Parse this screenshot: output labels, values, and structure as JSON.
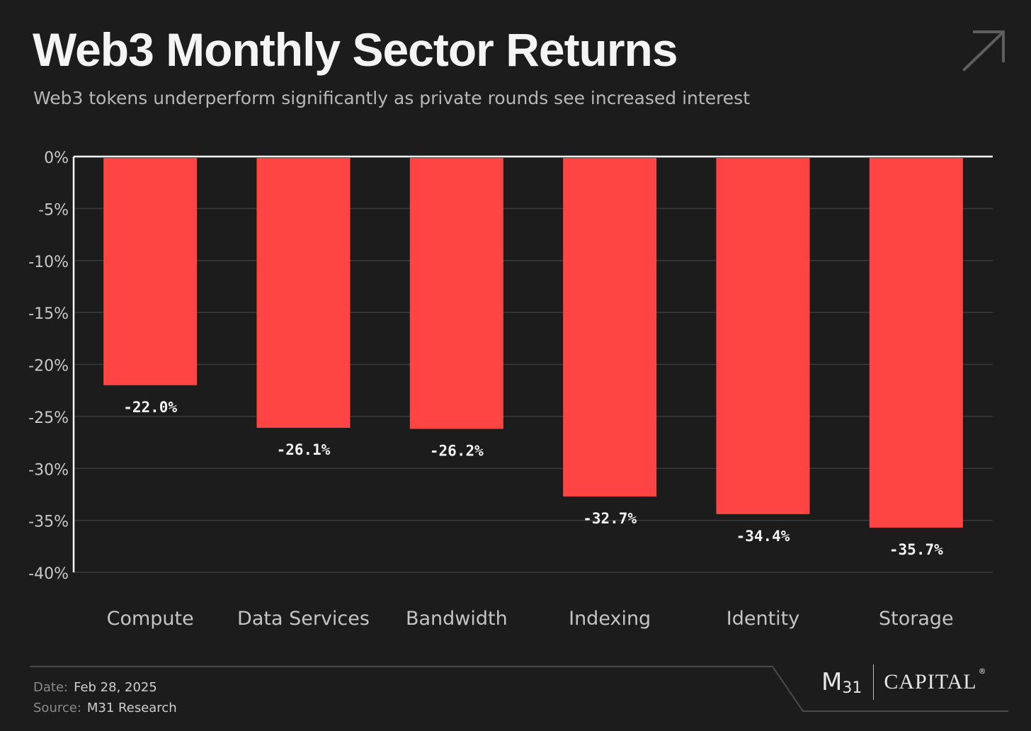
{
  "header": {
    "title": "Web3 Monthly Sector Returns",
    "subtitle": "Web3 tokens underperform significantly as private rounds see increased interest",
    "corner_icon": "arrow-up-right-icon"
  },
  "chart_data": {
    "type": "bar",
    "title": "Web3 Monthly Sector Returns",
    "subtitle": "Web3 tokens underperform significantly as private rounds see increased interest",
    "categories": [
      "Compute",
      "Data Services",
      "Bandwidth",
      "Indexing",
      "Identity",
      "Storage"
    ],
    "values": [
      -22.0,
      -26.1,
      -26.2,
      -32.7,
      -34.4,
      -35.7
    ],
    "data_labels": [
      "-22.0%",
      "-26.1%",
      "-26.2%",
      "-32.7%",
      "-34.4%",
      "-35.7%"
    ],
    "yticks": [
      0,
      -5,
      -10,
      -15,
      -20,
      -25,
      -30,
      -35,
      -40
    ],
    "ytick_labels": [
      "0%",
      "-5%",
      "-10%",
      "-15%",
      "-20%",
      "-25%",
      "-30%",
      "-35%",
      "-40%"
    ],
    "ylim": [
      -40,
      0
    ],
    "xlabel": "",
    "ylabel": "",
    "grid": true,
    "legend": "none",
    "bar_color": "#ff4444"
  },
  "footer": {
    "date_label": "Date:",
    "date_value": "Feb 28, 2025",
    "source_label": "Source:",
    "source_value": "M31 Research"
  },
  "logo": {
    "mark": "M",
    "sub": "31",
    "wordmark": "CAPITAL",
    "registered": "®"
  },
  "colors": {
    "background": "#1c1c1c",
    "bar": "#ff4444",
    "grid": "#3a3a3a",
    "axis": "#ffffff"
  }
}
